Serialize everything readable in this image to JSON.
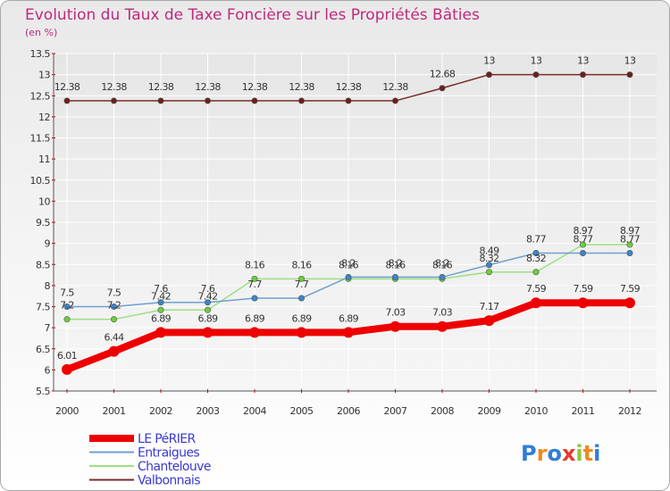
{
  "title": "Evolution du Taux de Taxe Foncière sur les Propriétés Bâties",
  "unit": "(en %)",
  "logo": {
    "text": "Proxiti"
  },
  "colors": {
    "background_top": "#e9e9e9",
    "background_bottom": "#ffffff",
    "border": "#a8a8a8",
    "title": "#c0297d",
    "axis": "#555555",
    "tick_dash": "#cc0000",
    "grid": "#ffffff",
    "label": "#333333",
    "legend_text": "#3a3ad0"
  },
  "chart_data": {
    "type": "line",
    "x": [
      "2000",
      "2001",
      "2002",
      "2003",
      "2004",
      "2005",
      "2006",
      "2007",
      "2008",
      "2009",
      "2010",
      "2011",
      "2012"
    ],
    "yticks": [
      "5.5",
      "6",
      "6.5",
      "7",
      "7.5",
      "8",
      "8.5",
      "9",
      "9.5",
      "10",
      "10.5",
      "11",
      "11.5",
      "12",
      "12.5",
      "13",
      "13.5"
    ],
    "ylim": [
      5.5,
      13.5
    ],
    "grid": true,
    "legend_position": "bottom-left",
    "series": [
      {
        "name": "LE PéRIER",
        "color": "#ee0000",
        "marker_color": "#ee0000",
        "values": [
          6.01,
          6.44,
          6.89,
          6.89,
          6.89,
          6.89,
          6.89,
          7.03,
          7.03,
          7.17,
          7.59,
          7.59,
          7.59
        ],
        "labels": [
          "6.01",
          "6.44",
          "6.89",
          "6.89",
          "6.89",
          "6.89",
          "6.89",
          "7.03",
          "7.03",
          "7.17",
          "7.59",
          "7.59",
          "7.59"
        ]
      },
      {
        "name": "Entraigues",
        "color": "#6fa0cf",
        "marker_color": "#3b86c6",
        "values": [
          7.5,
          7.5,
          7.6,
          7.6,
          7.7,
          7.7,
          8.2,
          8.2,
          8.2,
          8.49,
          8.77,
          8.77,
          8.77
        ],
        "labels": [
          "7.5",
          "7.5",
          "7.6",
          "7.6",
          "7.7",
          "7.7",
          "8.2",
          "8.2",
          "8.2",
          "8.49",
          "8.77",
          "8.77",
          "8.77"
        ]
      },
      {
        "name": "Chantelouve",
        "color": "#9de084",
        "marker_color": "#6ccf3c",
        "values": [
          7.2,
          7.2,
          7.42,
          7.42,
          8.16,
          8.16,
          8.16,
          8.16,
          8.16,
          8.32,
          8.32,
          8.97,
          8.97
        ],
        "labels": [
          "7.2",
          "7.2",
          "7.42",
          "7.42",
          "8.16",
          "8.16",
          "8.16",
          "8.16",
          "8.16",
          "8.32",
          "8.32",
          "8.97",
          "8.97"
        ]
      },
      {
        "name": "Valbonnais",
        "color": "#7a2b2b",
        "marker_color": "#6b1f1f",
        "values": [
          12.38,
          12.38,
          12.38,
          12.38,
          12.38,
          12.38,
          12.38,
          12.38,
          12.68,
          13,
          13,
          13,
          13
        ],
        "labels": [
          "12.38",
          "12.38",
          "12.38",
          "12.38",
          "12.38",
          "12.38",
          "12.38",
          "12.38",
          "12.68",
          "13",
          "13",
          "13",
          "13"
        ]
      }
    ]
  }
}
